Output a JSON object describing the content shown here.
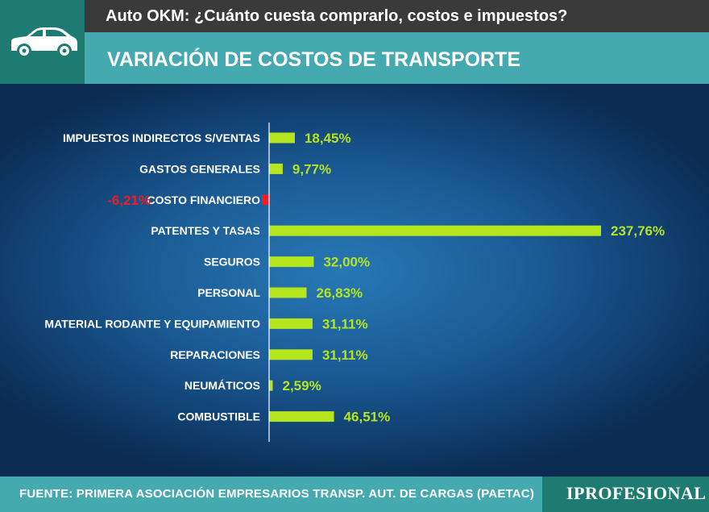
{
  "header": {
    "top_title": "Auto OKM: ¿Cuánto cuesta comprarlo, costos e impuestos?",
    "main_title": "VARIACIÓN DE COSTOS DE TRANSPORTE",
    "icon": "car-icon"
  },
  "footer": {
    "source": "FUENTE: PRIMERA ASOCIACIÓN EMPRESARIOS TRANSP. AUT. DE CARGAS (PAETAC)",
    "brand": "IPROFESIONAL"
  },
  "colors": {
    "positive_bar": "#b5e61d",
    "negative_bar": "#ee1c24",
    "positive_label": "#b5e61d",
    "negative_label": "#ee1c24"
  },
  "chart_data": {
    "type": "bar",
    "orientation": "horizontal",
    "categories": [
      "IMPUESTOS INDIRECTOS S/VENTAS",
      "GASTOS GENERALES",
      "COSTO FINANCIERO",
      "PATENTES Y TASAS",
      "SEGUROS",
      "PERSONAL",
      "MATERIAL RODANTE Y EQUIPAMIENTO",
      "REPARACIONES",
      "NEUMÁTICOS",
      "COMBUSTIBLE"
    ],
    "values": [
      18.45,
      9.77,
      -6.21,
      237.76,
      32.0,
      26.83,
      31.11,
      31.11,
      2.59,
      46.51
    ],
    "value_labels": [
      "18,45%",
      "9,77%",
      "-6,21%",
      "237,76%",
      "32,00%",
      "26,83%",
      "31,11%",
      "31,11%",
      "2,59%",
      "46,51%"
    ],
    "xlim": [
      0,
      237.76
    ],
    "grid": false,
    "legend": "none"
  }
}
